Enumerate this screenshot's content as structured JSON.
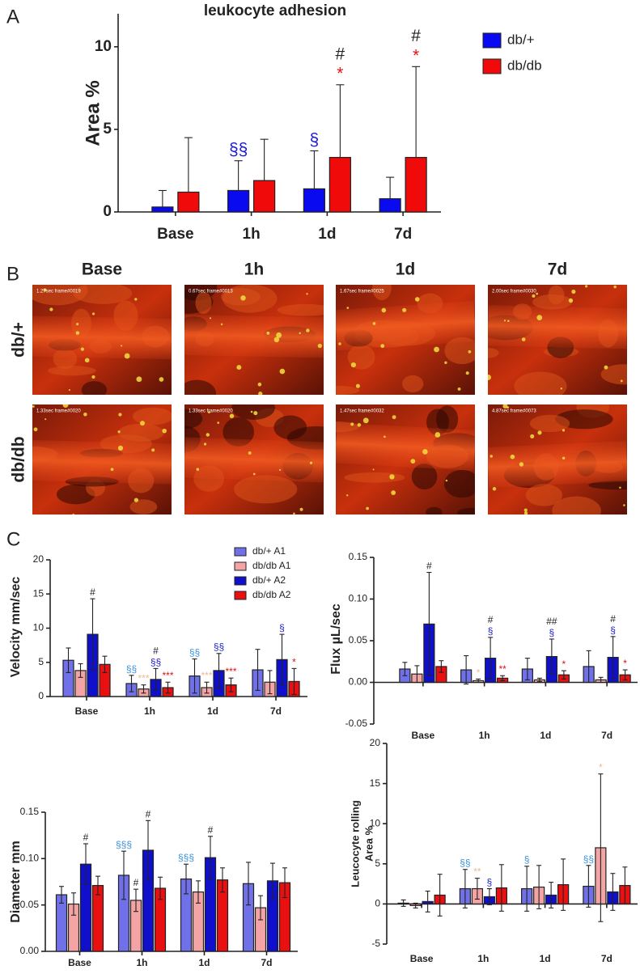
{
  "panel_labels": [
    "A",
    "B",
    "C"
  ],
  "panel_b": {
    "columns": [
      "Base",
      "1h",
      "1d",
      "7d"
    ],
    "rows": [
      "db/+",
      "db/db"
    ],
    "stamps": [
      [
        "1.27sec frame#0019",
        "0.67sec frame#0013",
        "1.67sec frame#0025",
        "2.00sec frame#0030"
      ],
      [
        "1.33sec frame#0020",
        "1.33sec frame#0020",
        "1.47sec frame#0032",
        "4.87sec frame#0073"
      ]
    ]
  },
  "chart_data": [
    {
      "type": "bar",
      "title": "leukocyte adhesion",
      "y_label": [
        "Area %"
      ],
      "error_bars": "up",
      "legend": "outside-right",
      "categories": [
        "Base",
        "1h",
        "1d",
        "7d"
      ],
      "ylim": [
        0,
        12
      ],
      "yticks": [
        0,
        5,
        10
      ],
      "series": [
        {
          "name": "db/+",
          "color": "#0a0af0",
          "values": [
            0.3,
            1.3,
            1.4,
            0.8
          ],
          "errors": [
            1.0,
            1.8,
            2.3,
            1.3
          ],
          "annotations": [
            [],
            [
              {
                "text": "§§",
                "color": "#1a1ad8"
              }
            ],
            [
              {
                "text": "§",
                "color": "#1a1ad8"
              }
            ],
            []
          ]
        },
        {
          "name": "db/db",
          "color": "#f00a0a",
          "values": [
            1.2,
            1.9,
            3.3,
            3.3
          ],
          "errors": [
            3.3,
            2.5,
            4.4,
            5.5
          ],
          "annotations": [
            [],
            [],
            [
              {
                "text": "*",
                "color": "#f01010"
              },
              {
                "text": "#",
                "color": "#222222"
              }
            ],
            [
              {
                "text": "*",
                "color": "#f01010"
              },
              {
                "text": "#",
                "color": "#222222"
              }
            ]
          ]
        }
      ]
    },
    {
      "type": "bar",
      "y_label": [
        "Velocity mm/sec"
      ],
      "error_bars": "both",
      "legend": "upper-center",
      "categories": [
        "Base",
        "1h",
        "1d",
        "7d"
      ],
      "ylim": [
        0,
        20
      ],
      "yticks": [
        0,
        5,
        10,
        15,
        20
      ],
      "series": [
        {
          "name": "db/+ A1",
          "color": "#7070e8",
          "values": [
            5.3,
            1.9,
            3.0,
            3.9
          ],
          "errors": [
            1.8,
            1.2,
            2.5,
            3.0
          ],
          "annotations": [
            [],
            [
              {
                "text": "§§",
                "color": "#3a8fd8"
              }
            ],
            [
              {
                "text": "§§",
                "color": "#3a8fd8"
              }
            ],
            []
          ]
        },
        {
          "name": "db/db A1",
          "color": "#f4a4a4",
          "values": [
            3.8,
            1.1,
            1.3,
            2.1
          ],
          "errors": [
            1.0,
            0.6,
            0.8,
            1.7
          ],
          "annotations": [
            [],
            [
              {
                "text": "***",
                "color": "#f0b890"
              }
            ],
            [
              {
                "text": "***",
                "color": "#f0b890"
              }
            ],
            []
          ]
        },
        {
          "name": "db/+ A2",
          "color": "#1010cc",
          "values": [
            9.1,
            2.5,
            3.8,
            5.4
          ],
          "errors": [
            5.2,
            1.6,
            2.5,
            3.7
          ],
          "annotations": [
            [
              {
                "text": "#",
                "color": "#222222"
              }
            ],
            [
              {
                "text": "§§",
                "color": "#1a1acc"
              },
              {
                "text": "#",
                "color": "#222222"
              }
            ],
            [
              {
                "text": "§§",
                "color": "#1a1acc"
              }
            ],
            [
              {
                "text": "§",
                "color": "#1a1acc"
              }
            ]
          ]
        },
        {
          "name": "db/db A2",
          "color": "#e81010",
          "values": [
            4.7,
            1.3,
            1.7,
            2.2
          ],
          "errors": [
            1.2,
            0.8,
            1.0,
            1.9
          ],
          "annotations": [
            [],
            [
              {
                "text": "***",
                "color": "#e01010"
              }
            ],
            [
              {
                "text": "***",
                "color": "#e01010"
              }
            ],
            [
              {
                "text": "*",
                "color": "#e01010"
              }
            ]
          ]
        }
      ]
    },
    {
      "type": "bar",
      "y_label": [
        "Flux µL/sec"
      ],
      "error_bars": "both",
      "categories": [
        "Base",
        "1h",
        "1d",
        "7d"
      ],
      "ylim": [
        -0.05,
        0.15
      ],
      "yticks": [
        -0.05,
        {
          "value": 0,
          "label": "0.00"
        },
        0.05,
        {
          "value": 0.1,
          "label": "0.10"
        },
        0.15
      ],
      "series": [
        {
          "name": "db/+ A1",
          "color": "#7070e8",
          "values": [
            0.016,
            0.015,
            0.016,
            0.019
          ],
          "errors": [
            0.008,
            0.017,
            0.013,
            0.019
          ],
          "annotations": [
            [],
            [],
            [],
            []
          ]
        },
        {
          "name": "db/db A1",
          "color": "#f4a4a4",
          "values": [
            0.01,
            0.002,
            0.003,
            0.003
          ],
          "errors": [
            0.01,
            0.002,
            0.002,
            0.003
          ],
          "annotations": [
            [],
            [
              {
                "text": "*",
                "color": "#f0b890"
              }
            ],
            [],
            []
          ]
        },
        {
          "name": "db/+ A2",
          "color": "#1010cc",
          "values": [
            0.07,
            0.029,
            0.031,
            0.03
          ],
          "errors": [
            0.062,
            0.025,
            0.021,
            0.025
          ],
          "annotations": [
            [
              {
                "text": "#",
                "color": "#222222"
              }
            ],
            [
              {
                "text": "§",
                "color": "#1a1acc"
              },
              {
                "text": "#",
                "color": "#222222"
              }
            ],
            [
              {
                "text": "§",
                "color": "#1a1acc"
              },
              {
                "text": "##",
                "color": "#222222"
              }
            ],
            [
              {
                "text": "§",
                "color": "#1a1acc"
              },
              {
                "text": "#",
                "color": "#222222"
              }
            ]
          ]
        },
        {
          "name": "db/db A2",
          "color": "#e81010",
          "values": [
            0.019,
            0.005,
            0.009,
            0.009
          ],
          "errors": [
            0.007,
            0.003,
            0.005,
            0.006
          ],
          "annotations": [
            [],
            [
              {
                "text": "**",
                "color": "#e01010"
              }
            ],
            [
              {
                "text": "*",
                "color": "#e01010"
              }
            ],
            [
              {
                "text": "*",
                "color": "#e01010"
              }
            ]
          ]
        }
      ]
    },
    {
      "type": "bar",
      "y_label": [
        "Diameter mm"
      ],
      "error_bars": "both",
      "categories": [
        "Base",
        "1h",
        "1d",
        "7d"
      ],
      "ylim": [
        0,
        0.15
      ],
      "yticks": [
        {
          "value": 0,
          "label": "0.00"
        },
        0.05,
        {
          "value": 0.1,
          "label": "0.10"
        },
        0.15
      ],
      "series": [
        {
          "name": "db/+ A1",
          "color": "#7070e8",
          "values": [
            0.061,
            0.082,
            0.078,
            0.073
          ],
          "errors": [
            0.009,
            0.026,
            0.016,
            0.023
          ],
          "annotations": [
            [],
            [
              {
                "text": "§§§",
                "color": "#3a8fd8"
              }
            ],
            [
              {
                "text": "§§§",
                "color": "#3a8fd8"
              }
            ],
            []
          ]
        },
        {
          "name": "db/db A1",
          "color": "#f4a4a4",
          "values": [
            0.051,
            0.055,
            0.064,
            0.047
          ],
          "errors": [
            0.012,
            0.012,
            0.012,
            0.013
          ],
          "annotations": [
            [],
            [
              {
                "text": "#",
                "color": "#222222"
              }
            ],
            [],
            []
          ]
        },
        {
          "name": "db/+ A2",
          "color": "#1010cc",
          "values": [
            0.094,
            0.109,
            0.101,
            0.076
          ],
          "errors": [
            0.022,
            0.032,
            0.023,
            0.019
          ],
          "annotations": [
            [
              {
                "text": "#",
                "color": "#222222"
              }
            ],
            [
              {
                "text": "#",
                "color": "#222222"
              }
            ],
            [
              {
                "text": "#",
                "color": "#222222"
              }
            ],
            []
          ]
        },
        {
          "name": "db/db A2",
          "color": "#e81010",
          "values": [
            0.071,
            0.068,
            0.077,
            0.074
          ],
          "errors": [
            0.01,
            0.012,
            0.013,
            0.016
          ],
          "annotations": [
            [],
            [],
            [],
            []
          ]
        }
      ]
    },
    {
      "type": "bar",
      "y_label": [
        "Leucocyte rolling",
        "Area %"
      ],
      "error_bars": "both",
      "categories": [
        "Base",
        "1h",
        "1d",
        "7d"
      ],
      "ylim": [
        -5,
        20
      ],
      "yticks": [
        -5,
        0,
        5,
        10,
        15,
        20
      ],
      "series": [
        {
          "name": "db/+ A1",
          "color": "#7070e8",
          "values": [
            0.1,
            1.9,
            1.9,
            2.2
          ],
          "errors": [
            0.4,
            2.4,
            2.8,
            2.6
          ],
          "annotations": [
            [],
            [
              {
                "text": "§§",
                "color": "#3a8fd8"
              }
            ],
            [
              {
                "text": "§",
                "color": "#3a8fd8"
              }
            ],
            [
              {
                "text": "§§",
                "color": "#3a8fd8"
              }
            ]
          ]
        },
        {
          "name": "db/db A1",
          "color": "#f4a4a4",
          "values": [
            -0.2,
            1.9,
            2.1,
            7.0
          ],
          "errors": [
            0.3,
            1.3,
            2.7,
            9.2
          ],
          "annotations": [
            [],
            [
              {
                "text": "**",
                "color": "#f0b890"
              }
            ],
            [],
            [
              {
                "text": "*",
                "color": "#f0b890"
              }
            ]
          ]
        },
        {
          "name": "db/+ A2",
          "color": "#1010cc",
          "values": [
            0.3,
            0.9,
            1.1,
            1.5
          ],
          "errors": [
            1.3,
            1.0,
            1.6,
            2.3
          ],
          "annotations": [
            [],
            [
              {
                "text": "§",
                "color": "#1a1acc"
              }
            ],
            [],
            []
          ]
        },
        {
          "name": "db/db A2",
          "color": "#e81010",
          "values": [
            1.1,
            2.0,
            2.4,
            2.3
          ],
          "errors": [
            2.6,
            2.9,
            3.2,
            2.3
          ],
          "annotations": [
            [],
            [],
            [],
            []
          ]
        }
      ]
    }
  ]
}
